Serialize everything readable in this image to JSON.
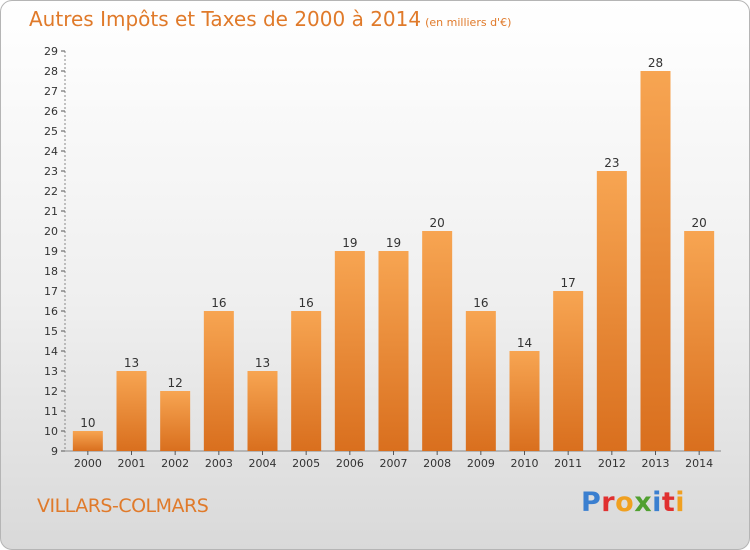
{
  "chart_data": {
    "type": "bar",
    "title": "Autres Impôts et Taxes de 2000 à 2014",
    "unit": "(en milliers d'€)",
    "categories": [
      "2000",
      "2001",
      "2002",
      "2003",
      "2004",
      "2005",
      "2006",
      "2007",
      "2008",
      "2009",
      "2010",
      "2011",
      "2012",
      "2013",
      "2014"
    ],
    "values": [
      10,
      13,
      12,
      16,
      13,
      16,
      19,
      19,
      20,
      16,
      14,
      17,
      23,
      28,
      20
    ],
    "ylim": [
      9,
      29
    ],
    "grid": false,
    "colors": {
      "bar_top": "#f7a552",
      "bar_bottom": "#d96f1e",
      "text": "#e07a2a"
    }
  },
  "place": "VILLARS-COLMARS",
  "logo": {
    "letters": [
      "P",
      "r",
      "o",
      "x",
      "i",
      "t",
      "i"
    ],
    "colors": [
      "#3a7fd0",
      "#e03030",
      "#f0a020",
      "#50a030",
      "#3a7fd0",
      "#e03030",
      "#f0a020"
    ]
  }
}
